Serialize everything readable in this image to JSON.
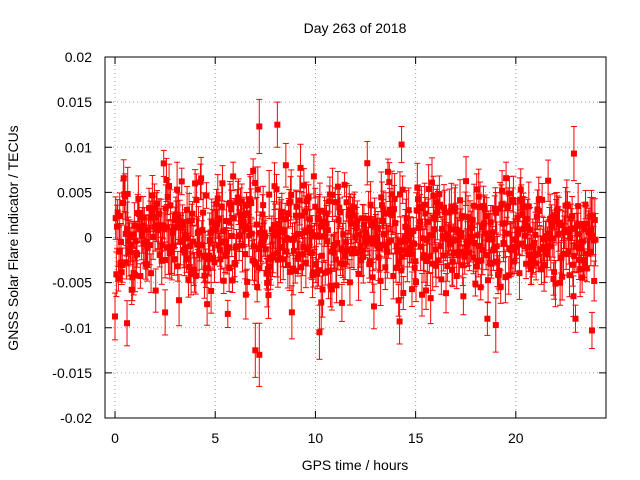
{
  "chart_data": {
    "type": "scatter",
    "title": "Day 263 of 2018",
    "xlabel": "GPS time / hours",
    "ylabel": "GNSS Solar Flare indicator / TECUs",
    "xlim": [
      -0.5,
      24.5
    ],
    "ylim": [
      -0.02,
      0.02
    ],
    "grid": true,
    "grid_style": "dotted",
    "x_ticks": [
      0,
      5,
      10,
      15,
      20
    ],
    "x_tick_labels": [
      "0",
      "5",
      "10",
      "15",
      "20"
    ],
    "y_ticks": [
      -0.02,
      -0.015,
      -0.01,
      -0.005,
      0,
      0.005,
      0.01,
      0.015,
      0.02
    ],
    "y_tick_labels": [
      "-0.02",
      "-0.015",
      "-0.01",
      "-0.005",
      "0",
      "0.005",
      "0.01",
      "0.015",
      "0.02"
    ],
    "series": [
      {
        "name": "solar flare indicator",
        "color": "#ff0000",
        "marker": "square",
        "error_bars": true,
        "x_start": 0,
        "x_end": 24,
        "x_step": 0.0333,
        "typical_spread": 0.004,
        "typical_error": 0.0022,
        "notable_points": [
          {
            "x": 7.0,
            "y": -0.0125,
            "err": 0.003
          },
          {
            "x": 7.2,
            "y": -0.013,
            "err": 0.0035
          },
          {
            "x": 7.2,
            "y": 0.0123,
            "err": 0.003
          },
          {
            "x": 8.1,
            "y": 0.0125,
            "err": 0.0025
          },
          {
            "x": 0.6,
            "y": -0.0095,
            "err": 0.0025
          },
          {
            "x": 2.5,
            "y": -0.0083,
            "err": 0.0025
          },
          {
            "x": 10.2,
            "y": -0.0105,
            "err": 0.003
          },
          {
            "x": 14.3,
            "y": 0.0103,
            "err": 0.002
          },
          {
            "x": 14.2,
            "y": -0.0093,
            "err": 0.0025
          },
          {
            "x": 19.0,
            "y": -0.0097,
            "err": 0.003
          },
          {
            "x": 22.9,
            "y": 0.0093,
            "err": 0.003
          },
          {
            "x": 23.8,
            "y": -0.0103,
            "err": 0.002
          }
        ]
      }
    ]
  }
}
